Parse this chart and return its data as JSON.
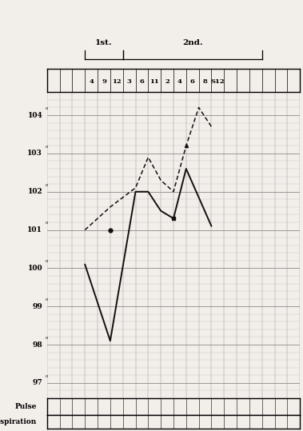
{
  "title_1st": "1st.",
  "title_2nd": "2nd.",
  "hour_labels": [
    "",
    "",
    "",
    "4",
    "9",
    "12",
    "3",
    "6",
    "11",
    "2",
    "4",
    "6",
    "8",
    "S12",
    "",
    "",
    "",
    "",
    "",
    ""
  ],
  "n_cols": 20,
  "y_min": 96.6,
  "y_max": 104.6,
  "y_ticks": [
    97,
    98,
    99,
    100,
    101,
    102,
    103,
    104
  ],
  "solid_line_x": [
    3,
    5,
    7,
    8,
    9,
    10,
    11,
    13
  ],
  "solid_line_y": [
    100.1,
    98.1,
    102.0,
    102.0,
    101.5,
    101.3,
    102.6,
    101.1
  ],
  "dashed_line_x": [
    3,
    5,
    7,
    8,
    9,
    10,
    11,
    12,
    13
  ],
  "dashed_line_y": [
    101.0,
    101.6,
    102.1,
    102.9,
    102.3,
    102.0,
    103.2,
    104.2,
    103.7
  ],
  "solid_dot_x": [
    5
  ],
  "solid_dot_y": [
    101.0
  ],
  "solid_sq_x": [
    10
  ],
  "solid_sq_y": [
    101.3
  ],
  "background_color": "#f2eeea",
  "grid_color_major": "#999999",
  "grid_color_minor": "#cccccc",
  "line_color": "#111111",
  "bottom_labels": [
    "Pulse",
    "Respiration"
  ]
}
